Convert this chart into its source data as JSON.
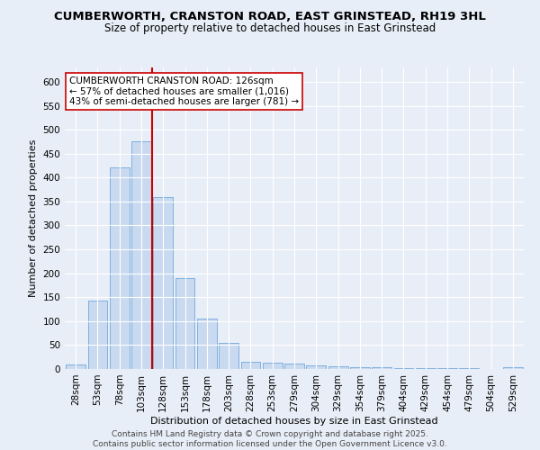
{
  "title_line1": "CUMBERWORTH, CRANSTON ROAD, EAST GRINSTEAD, RH19 3HL",
  "title_line2": "Size of property relative to detached houses in East Grinstead",
  "xlabel": "Distribution of detached houses by size in East Grinstead",
  "ylabel": "Number of detached properties",
  "categories": [
    "28sqm",
    "53sqm",
    "78sqm",
    "103sqm",
    "128sqm",
    "153sqm",
    "178sqm",
    "203sqm",
    "228sqm",
    "253sqm",
    "279sqm",
    "304sqm",
    "329sqm",
    "354sqm",
    "379sqm",
    "404sqm",
    "429sqm",
    "454sqm",
    "479sqm",
    "504sqm",
    "529sqm"
  ],
  "values": [
    10,
    143,
    422,
    475,
    360,
    190,
    105,
    54,
    15,
    14,
    11,
    8,
    5,
    4,
    3,
    2,
    2,
    1,
    1,
    0,
    4
  ],
  "bar_color": "#c9d9f0",
  "bar_edge_color": "#6fa8dc",
  "vline_pos": 3.5,
  "vline_color": "#cc0000",
  "annotation_text": "CUMBERWORTH CRANSTON ROAD: 126sqm\n← 57% of detached houses are smaller (1,016)\n43% of semi-detached houses are larger (781) →",
  "annotation_box_color": "#ffffff",
  "annotation_box_edge": "#cc0000",
  "ylim": [
    0,
    630
  ],
  "yticks": [
    0,
    50,
    100,
    150,
    200,
    250,
    300,
    350,
    400,
    450,
    500,
    550,
    600
  ],
  "background_color": "#e8eef7",
  "plot_bg_color": "#e8eef7",
  "footer_text": "Contains HM Land Registry data © Crown copyright and database right 2025.\nContains public sector information licensed under the Open Government Licence v3.0.",
  "title_fontsize": 9.5,
  "subtitle_fontsize": 8.5,
  "axis_label_fontsize": 8,
  "tick_fontsize": 7.5,
  "annotation_fontsize": 7.5,
  "footer_fontsize": 6.5
}
